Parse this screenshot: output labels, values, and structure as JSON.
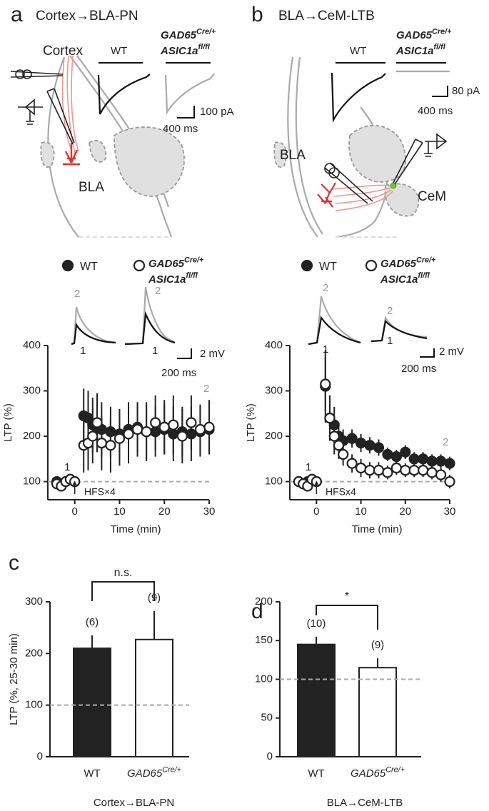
{
  "panels": [
    {
      "letter": "a",
      "title": "Cortex→BLA-PN",
      "schematic": {
        "region_labels": [
          "Cortex",
          "BLA"
        ],
        "control": "WT",
        "genotype": [
          "GAD65",
          "Cre/+",
          "ASIC1a",
          "fl/fl"
        ],
        "scale_y": "100 pA",
        "scale_x": "400 ms"
      }
    },
    {
      "letter": "b",
      "title": "BLA→CeM-LTB",
      "schematic": {
        "region_labels": [
          "BLA",
          "CeM"
        ],
        "control": "WT",
        "genotype": [
          "GAD65",
          "Cre/+",
          "ASIC1a",
          "fl/fl"
        ],
        "scale_y": "80 pA",
        "scale_x": "400 ms"
      }
    },
    {
      "letter": "c"
    },
    {
      "letter": "d"
    }
  ],
  "chart_data": [
    {
      "type": "scatter",
      "x": [
        -4,
        -3,
        -2,
        -1,
        0,
        2,
        3,
        4,
        5,
        6,
        8,
        10,
        12,
        14,
        16,
        18,
        20,
        22,
        24,
        26,
        28,
        30
      ],
      "xlim": [
        -6,
        30
      ],
      "xticks": [
        0,
        10,
        20,
        30
      ],
      "ylim": [
        60,
        400
      ],
      "yticks": [
        100,
        200,
        300,
        400
      ],
      "xlabel": "Time (min)",
      "ylabel": "LTP (%)",
      "reference_line": 100,
      "series": [
        {
          "name": "WT",
          "color": "#222222",
          "marker": "filled",
          "values": [
            100,
            95,
            100,
            105,
            100,
            245,
            240,
            225,
            220,
            215,
            210,
            205,
            215,
            220,
            210,
            210,
            215,
            205,
            210,
            205,
            210,
            215
          ],
          "errors": [
            10,
            10,
            10,
            10,
            10,
            60,
            60,
            60,
            55,
            60,
            55,
            55,
            60,
            55,
            60,
            55,
            55,
            60,
            55,
            60,
            55,
            55
          ]
        },
        {
          "name": [
            "GAD65",
            "Cre/+",
            "ASIC1a",
            "fl/fl"
          ],
          "color": "#222222",
          "marker": "open",
          "values": [
            95,
            90,
            100,
            105,
            100,
            180,
            185,
            200,
            230,
            185,
            180,
            195,
            205,
            215,
            210,
            230,
            220,
            225,
            200,
            230,
            215,
            220
          ],
          "errors": [
            10,
            10,
            10,
            10,
            10,
            60,
            60,
            60,
            65,
            60,
            60,
            60,
            65,
            60,
            65,
            60,
            60,
            65,
            60,
            60,
            55,
            60
          ]
        }
      ],
      "annotations": {
        "stimulus": "HFS×4",
        "baseline": "1",
        "post": "2"
      },
      "inset": {
        "trace_labels": [
          [
            "2",
            "1"
          ],
          [
            "2",
            "1"
          ]
        ],
        "scale_y": "2 mV",
        "scale_x": "200 ms"
      }
    },
    {
      "type": "scatter",
      "x": [
        -4,
        -3,
        -2,
        -1,
        0,
        2,
        3,
        4,
        5,
        6,
        8,
        10,
        12,
        14,
        16,
        18,
        20,
        22,
        24,
        26,
        28,
        30
      ],
      "xlim": [
        -6,
        30
      ],
      "xticks": [
        0,
        10,
        20,
        30
      ],
      "ylim": [
        60,
        400
      ],
      "yticks": [
        100,
        200,
        300,
        400
      ],
      "xlabel": "Time (min)",
      "ylabel": "LTP (%)",
      "reference_line": 100,
      "series": [
        {
          "name": "WT",
          "color": "#222222",
          "marker": "filled",
          "values": [
            100,
            95,
            100,
            105,
            100,
            310,
            240,
            225,
            200,
            190,
            195,
            185,
            180,
            175,
            160,
            155,
            165,
            150,
            150,
            145,
            145,
            140
          ],
          "errors": [
            10,
            10,
            10,
            10,
            10,
            80,
            50,
            40,
            30,
            25,
            20,
            20,
            18,
            18,
            15,
            15,
            15,
            15,
            15,
            15,
            15,
            15
          ]
        },
        {
          "name": [
            "GAD65",
            "Cre/+",
            "ASIC1a",
            "fl/fl"
          ],
          "color": "#222222",
          "marker": "open",
          "values": [
            100,
            95,
            90,
            105,
            100,
            315,
            240,
            200,
            180,
            160,
            140,
            130,
            125,
            125,
            120,
            130,
            125,
            125,
            125,
            120,
            115,
            100
          ],
          "errors": [
            10,
            10,
            10,
            10,
            10,
            60,
            50,
            40,
            30,
            25,
            20,
            20,
            18,
            18,
            15,
            15,
            15,
            15,
            15,
            15,
            15,
            15
          ]
        }
      ],
      "annotations": {
        "stimulus": "HFSx4",
        "baseline": "1",
        "post": "2"
      },
      "inset": {
        "trace_labels": [
          [
            "2",
            "1"
          ],
          [
            "2",
            "1"
          ]
        ],
        "scale_y": "2 mV",
        "scale_x": "200 ms"
      }
    },
    {
      "type": "bar",
      "categories": [
        "WT",
        "GAD65"
      ],
      "category_superscripts": [
        null,
        "Cre/+"
      ],
      "values": [
        210,
        227
      ],
      "errors": [
        25,
        55
      ],
      "colors": [
        "#222222",
        "#ffffff"
      ],
      "ylim": [
        0,
        300
      ],
      "yticks": [
        0,
        100,
        200,
        300
      ],
      "ylabel": "LTP (%, 25-30 min)",
      "xlabel": "Cortex→BLA-PN",
      "reference_line": 100,
      "n_labels": [
        "(6)",
        "(9)"
      ],
      "significance": "n.s."
    },
    {
      "type": "bar",
      "categories": [
        "WT",
        "GAD65"
      ],
      "category_superscripts": [
        null,
        "Cre/+"
      ],
      "values": [
        145,
        115
      ],
      "errors": [
        10,
        12
      ],
      "colors": [
        "#222222",
        "#ffffff"
      ],
      "ylim": [
        0,
        200
      ],
      "yticks": [
        0,
        50,
        100,
        150,
        200
      ],
      "xlabel": "BLA→CeM-LTB",
      "reference_line": 100,
      "n_labels": [
        "(10)",
        "(9)"
      ],
      "significance": "*"
    }
  ]
}
